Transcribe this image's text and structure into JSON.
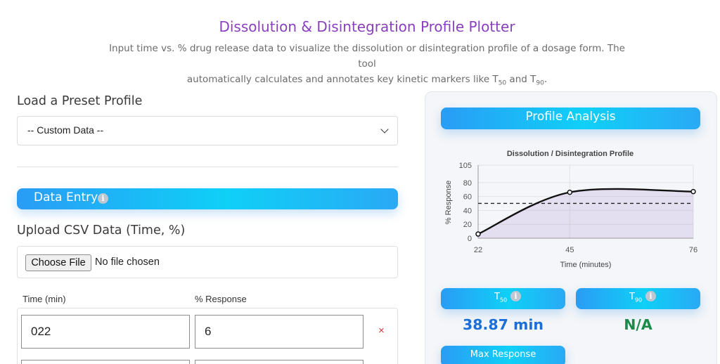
{
  "header": {
    "title": "Dissolution & Disintegration Profile Plotter",
    "subtitle_line1": "Input time vs. % drug release data to visualize the dissolution or disintegration profile of a dosage form. The tool",
    "subtitle_line2_a": "automatically calculates and annotates key kinetic markers like T",
    "subtitle_sub_a": "50",
    "subtitle_line2_b": " and T",
    "subtitle_sub_b": "90",
    "subtitle_line2_c": "."
  },
  "preset": {
    "label": "Load a Preset Profile",
    "selected": "-- Custom Data --"
  },
  "data_entry": {
    "title": "Data Entry",
    "info_icon": "i"
  },
  "upload": {
    "label": "Upload CSV Data (Time, %)",
    "button": "Choose File",
    "status": "No file chosen"
  },
  "table": {
    "col_time": "Time (min)",
    "col_response": "% Response",
    "rows": [
      {
        "time": "022",
        "response": "6"
      }
    ],
    "delete_icon": "×"
  },
  "analysis": {
    "title": "Profile Analysis",
    "t50_label_main": "T",
    "t50_label_sub": "50",
    "t50_value": "38.87 min",
    "t90_label_main": "T",
    "t90_label_sub": "90",
    "t90_value": "N/A",
    "max_label": "Max Response",
    "info_icon": "i"
  },
  "colors": {
    "accent_purple": "#8a3fbf",
    "t50_blue": "#1a6fd8",
    "t90_green": "#1b8a4b",
    "delete_red": "#d0393f"
  },
  "chart_data": {
    "type": "line",
    "title": "Dissolution / Disintegration Profile",
    "xlabel": "Time (minutes)",
    "ylabel": "% Response",
    "x_ticks": [
      22,
      45,
      76
    ],
    "y_ticks": [
      0,
      20,
      40,
      60,
      80,
      105
    ],
    "xlim": [
      22,
      76
    ],
    "ylim": [
      0,
      105
    ],
    "series": [
      {
        "x": [
          22,
          45,
          76
        ],
        "y": [
          6,
          66,
          67
        ]
      }
    ],
    "reference_line_y": 50,
    "fill_area": true,
    "grid": true
  }
}
